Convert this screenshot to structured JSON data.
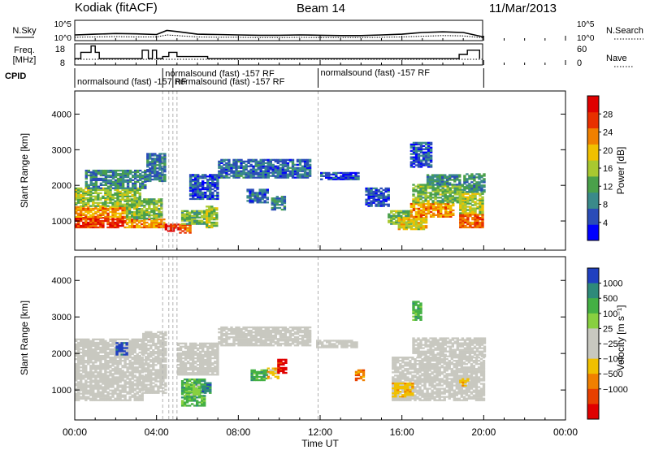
{
  "header": {
    "title": "Kodiak (fitACF)",
    "beam": "Beam 14",
    "date": "11/Mar/2013"
  },
  "colors": {
    "frame": "#000000",
    "dashed_lines": "#b0b0b0",
    "velocity_ground_scatter": "#c8c8c0"
  },
  "chart_data": [
    {
      "type": "line",
      "panel": "noise",
      "left_label": "N.Sky",
      "right_label": "N.Search",
      "left_ticks": [
        "10^5",
        "10^0"
      ],
      "right_ticks": [
        "10^5",
        "10^0"
      ],
      "x_range": [
        0,
        24
      ],
      "series": [
        {
          "name": "N.Sky",
          "x": [
            0,
            1,
            2,
            3,
            4,
            4.5,
            5,
            6,
            7,
            8,
            9,
            10,
            11,
            12,
            13,
            14,
            15,
            16,
            17,
            18,
            19,
            20
          ],
          "y": [
            1.2,
            1.4,
            1.6,
            1.5,
            1.3,
            2.5,
            2.2,
            1.4,
            1.3,
            1.2,
            1.1,
            1.1,
            1.2,
            1.1,
            1.0,
            1.0,
            1.2,
            1.4,
            1.9,
            2.1,
            1.9,
            0.6
          ]
        },
        {
          "name": "N.Search",
          "x": [
            0,
            1,
            2,
            3,
            4,
            4.5,
            5,
            6,
            7,
            8,
            9,
            10,
            11,
            12,
            13,
            14,
            15,
            16,
            17,
            18,
            19,
            20
          ],
          "y": [
            0.5,
            0.6,
            0.7,
            0.6,
            0.6,
            1.2,
            1.0,
            0.6,
            0.5,
            0.5,
            0.4,
            0.4,
            0.5,
            0.4,
            0.4,
            0.4,
            0.5,
            0.6,
            0.8,
            1.0,
            0.9,
            0.3
          ]
        }
      ]
    },
    {
      "type": "line",
      "panel": "frequency",
      "left_label": "Freq.",
      "left_unit": "[MHz]",
      "right_label": "Nave",
      "left_ticks": [
        "18",
        "8"
      ],
      "right_ticks": [
        "60",
        "0"
      ],
      "y_range": [
        8,
        18
      ],
      "x_range": [
        0,
        24
      ],
      "x": [
        0,
        0.3,
        0.3,
        0.8,
        0.8,
        1.0,
        1.0,
        1.2,
        1.2,
        3.3,
        3.3,
        3.6,
        3.6,
        3.8,
        3.8,
        4.0,
        4.0,
        4.3,
        4.3,
        4.6,
        4.6,
        5.0,
        5.0,
        6.5,
        6.5,
        7.0,
        7.0,
        18.8,
        18.8,
        19.2,
        19.2,
        19.8,
        19.8
      ],
      "y": [
        11,
        11,
        14,
        14,
        17,
        17,
        14,
        14,
        11,
        11,
        15,
        15,
        11,
        11,
        15,
        15,
        11,
        11,
        12,
        12,
        14,
        14,
        12,
        12,
        11,
        11,
        11,
        11,
        13,
        13,
        15,
        15,
        11
      ]
    },
    {
      "type": "table",
      "panel": "cpid",
      "label": "CPID",
      "segments": [
        {
          "start": 0,
          "end": 4.3,
          "text": "normalsound (fast) -157 RF"
        },
        {
          "start": 4.3,
          "end": 4.8,
          "text": "normalsound (fast) -157 RF"
        },
        {
          "start": 4.8,
          "end": 11.9,
          "text": "normalsound (fast) -157 RF"
        },
        {
          "start": 11.9,
          "end": 20.0,
          "text": "normalsound (fast) -157 RF"
        }
      ]
    },
    {
      "type": "heatmap",
      "panel": "power",
      "ylabel": "Slant Range [km]",
      "y_ticks": [
        1000,
        2000,
        3000,
        4000
      ],
      "y_range": [
        180,
        4650
      ],
      "x_range": [
        0,
        24
      ],
      "colorbar_label": "Power [dB]",
      "colorbar_ticks": [
        4,
        8,
        12,
        16,
        20,
        24,
        28
      ],
      "colorbar_range": [
        0,
        32
      ],
      "colorscale": [
        "#0000ff",
        "#2a4cb8",
        "#3a8a8a",
        "#4aa04a",
        "#a8c830",
        "#f0c000",
        "#f08000",
        "#e83000",
        "#e00000"
      ],
      "dashed_times": [
        4.3,
        4.6,
        4.8,
        5.0,
        11.9
      ],
      "regions": [
        {
          "t0": 0.0,
          "t1": 2.5,
          "r0": 800,
          "r1": 1100,
          "v": 27
        },
        {
          "t0": 0.0,
          "t1": 2.5,
          "r0": 1100,
          "r1": 1400,
          "v": 22
        },
        {
          "t0": 0.0,
          "t1": 3.2,
          "r0": 1400,
          "r1": 1900,
          "v": 15
        },
        {
          "t0": 0.5,
          "t1": 3.5,
          "r0": 1900,
          "r1": 2400,
          "v": 9
        },
        {
          "t0": 2.5,
          "t1": 4.4,
          "r0": 800,
          "r1": 1050,
          "v": 22
        },
        {
          "t0": 2.5,
          "t1": 4.2,
          "r0": 1050,
          "r1": 1600,
          "v": 14
        },
        {
          "t0": 3.5,
          "t1": 4.4,
          "r0": 2100,
          "r1": 2900,
          "v": 8
        },
        {
          "t0": 4.4,
          "t1": 5.1,
          "r0": 700,
          "r1": 900,
          "v": 28
        },
        {
          "t0": 5.1,
          "t1": 5.6,
          "r0": 650,
          "r1": 900,
          "v": 24
        },
        {
          "t0": 5.2,
          "t1": 6.5,
          "r0": 900,
          "r1": 1300,
          "v": 13
        },
        {
          "t0": 6.4,
          "t1": 6.9,
          "r0": 800,
          "r1": 1400,
          "v": 16
        },
        {
          "t0": 5.6,
          "t1": 7.0,
          "r0": 1600,
          "r1": 2300,
          "v": 6
        },
        {
          "t0": 7.0,
          "t1": 11.5,
          "r0": 2200,
          "r1": 2700,
          "v": 7
        },
        {
          "t0": 8.4,
          "t1": 9.4,
          "r0": 1500,
          "r1": 1900,
          "v": 7
        },
        {
          "t0": 9.6,
          "t1": 10.2,
          "r0": 1300,
          "r1": 1700,
          "v": 9
        },
        {
          "t0": 12.0,
          "t1": 13.8,
          "r0": 2150,
          "r1": 2350,
          "v": 5
        },
        {
          "t0": 14.2,
          "t1": 15.3,
          "r0": 1400,
          "r1": 1900,
          "v": 5
        },
        {
          "t0": 15.3,
          "t1": 16.4,
          "r0": 900,
          "r1": 1300,
          "v": 14
        },
        {
          "t0": 15.8,
          "t1": 17.2,
          "r0": 750,
          "r1": 1100,
          "v": 18
        },
        {
          "t0": 16.4,
          "t1": 18.5,
          "r0": 1100,
          "r1": 1500,
          "v": 22
        },
        {
          "t0": 16.5,
          "t1": 19.0,
          "r0": 1500,
          "r1": 2000,
          "v": 14
        },
        {
          "t0": 17.2,
          "t1": 18.8,
          "r0": 2000,
          "r1": 2300,
          "v": 9
        },
        {
          "t0": 16.4,
          "t1": 17.4,
          "r0": 2500,
          "r1": 3200,
          "v": 6
        },
        {
          "t0": 18.8,
          "t1": 20.0,
          "r0": 800,
          "r1": 1200,
          "v": 25
        },
        {
          "t0": 18.8,
          "t1": 20.0,
          "r0": 1200,
          "r1": 1800,
          "v": 17
        },
        {
          "t0": 19.0,
          "t1": 20.0,
          "r0": 1800,
          "r1": 2300,
          "v": 10
        }
      ]
    },
    {
      "type": "heatmap",
      "panel": "velocity",
      "ylabel": "Slant Range [km]",
      "y_ticks": [
        1000,
        2000,
        3000,
        4000
      ],
      "y_range": [
        180,
        4650
      ],
      "x_range": [
        0,
        24
      ],
      "xlabel": "Time UT",
      "x_tick_labels": [
        "00:00",
        "04:00",
        "08:00",
        "12:00",
        "16:00",
        "20:00",
        "00:00"
      ],
      "x_ticks": [
        0,
        4,
        8,
        12,
        16,
        20,
        24
      ],
      "colorbar_label": "Velocity [m s⁻¹]",
      "colorbar_ticks": [
        "1000",
        "500",
        "100",
        "25",
        "−25",
        "−100",
        "−500",
        "−1000"
      ],
      "colorscale": [
        "#2040c0",
        "#2e8a7a",
        "#44b044",
        "#88d040",
        "#c8c8c0",
        "#c8c8c0",
        "#f0c000",
        "#f08000",
        "#e84000",
        "#e00000"
      ],
      "dashed_times": [
        4.3,
        4.6,
        4.8,
        5.0,
        11.9
      ],
      "regions": [
        {
          "t0": 0.0,
          "t1": 3.3,
          "r0": 700,
          "r1": 2400,
          "c": 4
        },
        {
          "t0": 3.3,
          "t1": 4.5,
          "r0": 900,
          "r1": 2600,
          "c": 4
        },
        {
          "t0": 5.0,
          "t1": 7.0,
          "r0": 1400,
          "r1": 2300,
          "c": 4
        },
        {
          "t0": 7.0,
          "t1": 11.5,
          "r0": 2200,
          "r1": 2700,
          "c": 4
        },
        {
          "t0": 11.8,
          "t1": 13.8,
          "r0": 2150,
          "r1": 2350,
          "c": 4
        },
        {
          "t0": 15.5,
          "t1": 20.0,
          "r0": 700,
          "r1": 1900,
          "c": 4
        },
        {
          "t0": 16.5,
          "t1": 20.0,
          "r0": 1900,
          "r1": 2400,
          "c": 4
        },
        {
          "t0": 5.2,
          "t1": 6.3,
          "r0": 550,
          "r1": 1300,
          "c": 2
        },
        {
          "t0": 5.4,
          "t1": 6.1,
          "r0": 850,
          "r1": 1150,
          "c": 3
        },
        {
          "t0": 6.2,
          "t1": 6.6,
          "r0": 900,
          "r1": 1200,
          "c": 1
        },
        {
          "t0": 8.6,
          "t1": 9.4,
          "r0": 1250,
          "r1": 1550,
          "c": 2
        },
        {
          "t0": 9.4,
          "t1": 9.9,
          "r0": 1300,
          "r1": 1600,
          "c": 6
        },
        {
          "t0": 9.9,
          "t1": 10.3,
          "r0": 1450,
          "r1": 1850,
          "c": 9
        },
        {
          "t0": 2.0,
          "t1": 2.6,
          "r0": 1950,
          "r1": 2300,
          "c": 0
        },
        {
          "t0": 13.7,
          "t1": 14.1,
          "r0": 1250,
          "r1": 1550,
          "c": 7
        },
        {
          "t0": 15.5,
          "t1": 16.5,
          "r0": 800,
          "r1": 1200,
          "c": 6
        },
        {
          "t0": 18.8,
          "t1": 19.2,
          "r0": 1100,
          "r1": 1300,
          "c": 6
        },
        {
          "t0": 16.5,
          "t1": 16.9,
          "r0": 2900,
          "r1": 3400,
          "c": 2
        }
      ]
    }
  ]
}
